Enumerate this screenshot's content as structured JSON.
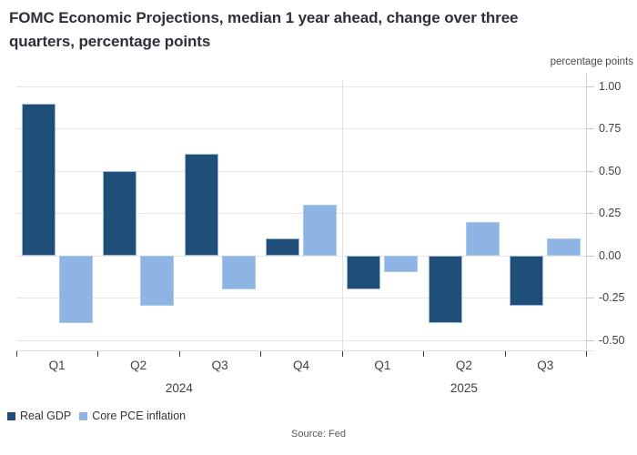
{
  "header": {
    "title_line1": "FOMC Economic Projections, median 1 year ahead, change over three",
    "title_line2": "quarters, percentage points"
  },
  "footer": {
    "source": "Source: Fed"
  },
  "legend": [
    {
      "label": "Real GDP",
      "color": "#1F4E79"
    },
    {
      "label": "Core PCE inflation",
      "color": "#8DB4E2"
    }
  ],
  "chart_data": {
    "type": "bar",
    "title": "FOMC Economic Projections, median 1 year ahead, change over three quarters, percentage points",
    "ylabel": "percentage points",
    "xlabel": "",
    "categories": [
      "Q1",
      "Q2",
      "Q3",
      "Q4",
      "Q1",
      "Q2",
      "Q3"
    ],
    "year_groups": [
      {
        "label": "2024",
        "quarters": 4
      },
      {
        "label": "2025",
        "quarters": 3
      }
    ],
    "series": [
      {
        "name": "Real GDP",
        "color": "#1F4E79",
        "values": [
          0.9,
          0.5,
          0.6,
          0.1,
          -0.2,
          -0.4,
          -0.3
        ]
      },
      {
        "name": "Core PCE inflation",
        "color": "#8DB4E2",
        "values": [
          -0.4,
          -0.3,
          -0.2,
          0.3,
          -0.1,
          0.2,
          0.1
        ]
      }
    ],
    "ylim": [
      -0.5,
      1.0
    ],
    "yticks": [
      1.0,
      0.75,
      0.5,
      0.25,
      0.0,
      -0.25,
      -0.5
    ],
    "ytick_labels": [
      "1.00",
      "0.75",
      "0.50",
      "0.25",
      "0.00",
      "-0.25",
      "-0.50"
    ],
    "grid": true,
    "legend_position": "bottom-left",
    "colors": {
      "grid": "#E6E6E6",
      "axis": "#D2D2D2",
      "tick": "#3F3F3F",
      "bar_border": "#B2CBEB"
    }
  }
}
